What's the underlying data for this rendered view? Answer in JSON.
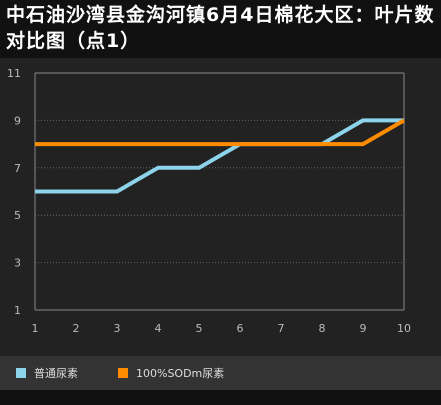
{
  "page": {
    "title": "中石油沙湾县金沟河镇6月4日棉花大区：叶片数对比图（点1）"
  },
  "colors": {
    "background": "#111111",
    "plot_background": "#222222",
    "legend_background": "#333333",
    "axis": "#888888",
    "grid": "#666666",
    "series_1": "#8dd3ea",
    "series_2": "#ff8c00"
  },
  "chart_data": {
    "type": "line",
    "title": "中石油沙湾县金沟河镇6月4日棉花大区：叶片数对比图（点1）",
    "xlabel": "",
    "ylabel": "",
    "x": [
      1,
      2,
      3,
      4,
      5,
      6,
      7,
      8,
      9,
      10
    ],
    "xticks": [
      "1",
      "2",
      "3",
      "4",
      "5",
      "6",
      "7",
      "8",
      "9",
      "10"
    ],
    "yticks": [
      "1",
      "3",
      "5",
      "7",
      "9",
      "11"
    ],
    "xlim": [
      1,
      10
    ],
    "ylim": [
      1,
      11
    ],
    "grid": "horizontal dotted",
    "legend_position": "bottom",
    "series": [
      {
        "name": "普通尿素",
        "color": "#8dd3ea",
        "values": [
          6,
          6,
          6,
          7,
          7,
          8,
          8,
          8,
          9,
          9
        ]
      },
      {
        "name": "100%SODm尿素",
        "color": "#ff8c00",
        "values": [
          8,
          8,
          8,
          8,
          8,
          8,
          8,
          8,
          8,
          9
        ]
      }
    ]
  }
}
